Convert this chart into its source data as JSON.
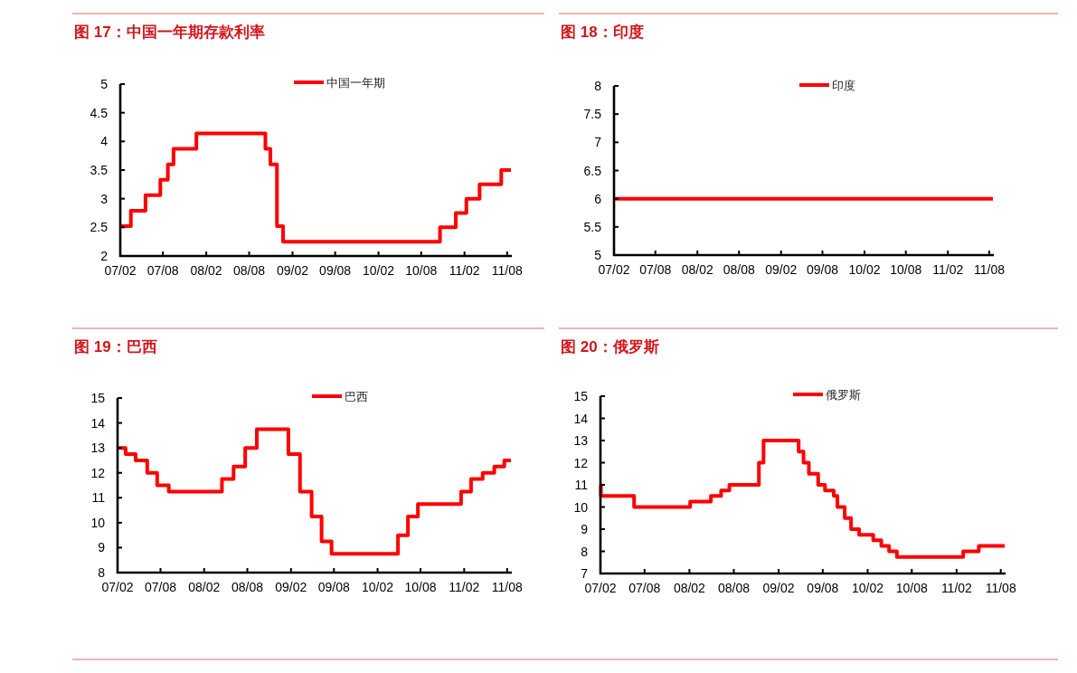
{
  "chart_data": [
    {
      "type": "step",
      "title": "图 17：中国一年期存款利率",
      "x": [
        "2007-02-01",
        "2007-03-18",
        "2007-05-19",
        "2007-07-21",
        "2007-08-22",
        "2007-09-15",
        "2007-12-21",
        "2008-10-09",
        "2008-10-30",
        "2008-11-27",
        "2008-12-23",
        "2010-10-20",
        "2010-12-26",
        "2011-02-09",
        "2011-04-06",
        "2011-07-07",
        "2011-08-17"
      ],
      "series": [
        {
          "name": "中国一年期",
          "color": "#ff0000",
          "values": [
            2.52,
            2.79,
            3.06,
            3.33,
            3.6,
            3.87,
            4.14,
            3.87,
            3.6,
            2.52,
            2.25,
            2.5,
            2.75,
            3,
            3.25,
            3.5,
            3.5
          ]
        }
      ],
      "xlim": [
        "2007-02-01",
        "2011-08-17"
      ],
      "xticks": [
        {
          "value": "2007-02",
          "label": "07/02"
        },
        {
          "value": "2007-08",
          "label": "07/08"
        },
        {
          "value": "2008-02",
          "label": "08/02"
        },
        {
          "value": "2008-08",
          "label": "08/08"
        },
        {
          "value": "2009-02",
          "label": "09/02"
        },
        {
          "value": "2009-08",
          "label": "09/08"
        },
        {
          "value": "2010-02",
          "label": "10/02"
        },
        {
          "value": "2010-08",
          "label": "10/08"
        },
        {
          "value": "2011-02",
          "label": "11/02"
        },
        {
          "value": "2011-08",
          "label": "11/08"
        }
      ],
      "ylim": [
        2,
        5
      ],
      "yticks": [
        2,
        2.5,
        3,
        3.5,
        4,
        4.5,
        5
      ],
      "legend": "top"
    },
    {
      "type": "step",
      "title": "图 18：印度",
      "x": [
        "2007-02-01",
        "2011-08-17"
      ],
      "series": [
        {
          "name": "印度",
          "color": "#ff0000",
          "values": [
            6,
            6
          ]
        }
      ],
      "xlim": [
        "2007-02-01",
        "2011-08-17"
      ],
      "xticks": [
        {
          "value": "2007-02",
          "label": "07/02"
        },
        {
          "value": "2007-08",
          "label": "07/08"
        },
        {
          "value": "2008-02",
          "label": "08/02"
        },
        {
          "value": "2008-08",
          "label": "08/08"
        },
        {
          "value": "2009-02",
          "label": "09/02"
        },
        {
          "value": "2009-08",
          "label": "09/08"
        },
        {
          "value": "2010-02",
          "label": "10/02"
        },
        {
          "value": "2010-08",
          "label": "10/08"
        },
        {
          "value": "2011-02",
          "label": "11/02"
        },
        {
          "value": "2011-08",
          "label": "11/08"
        }
      ],
      "ylim": [
        5,
        8
      ],
      "yticks": [
        5,
        5.5,
        6,
        6.5,
        7,
        7.5,
        8
      ],
      "legend": "top"
    },
    {
      "type": "step",
      "title": "图 19：巴西",
      "x": [
        "2007-02-01",
        "2007-03-07",
        "2007-04-18",
        "2007-06-06",
        "2007-07-18",
        "2007-09-05",
        "2008-04-16",
        "2008-06-04",
        "2008-07-23",
        "2008-09-10",
        "2009-01-21",
        "2009-03-11",
        "2009-04-29",
        "2009-06-10",
        "2009-07-22",
        "2010-04-28",
        "2010-06-09",
        "2010-07-21",
        "2011-01-19",
        "2011-03-02",
        "2011-04-20",
        "2011-06-08",
        "2011-07-20",
        "2011-08-17"
      ],
      "series": [
        {
          "name": "巴西",
          "color": "#ff0000",
          "values": [
            13,
            12.75,
            12.5,
            12,
            11.5,
            11.25,
            11.75,
            12.25,
            13,
            13.75,
            12.75,
            11.25,
            10.25,
            9.25,
            8.75,
            9.5,
            10.25,
            10.75,
            11.25,
            11.75,
            12,
            12.25,
            12.5,
            12.5
          ]
        }
      ],
      "xlim": [
        "2007-02-01",
        "2011-08-17"
      ],
      "xticks": [
        {
          "value": "2007-02",
          "label": "07/02"
        },
        {
          "value": "2007-08",
          "label": "07/08"
        },
        {
          "value": "2008-02",
          "label": "08/02"
        },
        {
          "value": "2008-08",
          "label": "08/08"
        },
        {
          "value": "2009-02",
          "label": "09/02"
        },
        {
          "value": "2009-08",
          "label": "09/08"
        },
        {
          "value": "2010-02",
          "label": "10/02"
        },
        {
          "value": "2010-08",
          "label": "10/08"
        },
        {
          "value": "2011-02",
          "label": "11/02"
        },
        {
          "value": "2011-08",
          "label": "11/08"
        }
      ],
      "ylim": [
        8,
        15
      ],
      "yticks": [
        8,
        9,
        10,
        11,
        12,
        13,
        14,
        15
      ],
      "legend": "top"
    },
    {
      "type": "step",
      "title": "图 20：俄罗斯",
      "x": [
        "2007-02-01",
        "2007-02-03",
        "2007-06-19",
        "2008-02-04",
        "2008-04-29",
        "2008-06-10",
        "2008-07-14",
        "2008-11-12",
        "2008-12-01",
        "2009-04-24",
        "2009-05-14",
        "2009-06-05",
        "2009-07-13",
        "2009-08-10",
        "2009-09-15",
        "2009-09-30",
        "2009-10-30",
        "2009-11-25",
        "2009-12-28",
        "2010-02-24",
        "2010-03-29",
        "2010-04-30",
        "2010-06-01",
        "2011-02-28",
        "2011-05-03",
        "2011-08-17"
      ],
      "series": [
        {
          "name": "俄罗斯",
          "color": "#ff0000",
          "values": [
            11,
            10.5,
            10,
            10.25,
            10.5,
            10.75,
            11,
            12,
            13,
            12.5,
            12,
            11.5,
            11,
            10.75,
            10.5,
            10,
            9.5,
            9,
            8.75,
            8.5,
            8.25,
            8,
            7.75,
            8,
            8.25,
            8.25
          ]
        }
      ],
      "xlim": [
        "2007-02-01",
        "2011-08-17"
      ],
      "xticks": [
        {
          "value": "2007-02",
          "label": "07/02"
        },
        {
          "value": "2007-08",
          "label": "07/08"
        },
        {
          "value": "2008-02",
          "label": "08/02"
        },
        {
          "value": "2008-08",
          "label": "08/08"
        },
        {
          "value": "2009-02",
          "label": "09/02"
        },
        {
          "value": "2009-08",
          "label": "09/08"
        },
        {
          "value": "2010-02",
          "label": "10/02"
        },
        {
          "value": "2010-08",
          "label": "10/08"
        },
        {
          "value": "2011-02",
          "label": "11/02"
        },
        {
          "value": "2011-08",
          "label": "11/08"
        }
      ],
      "ylim": [
        7,
        15
      ],
      "yticks": [
        7,
        8,
        9,
        10,
        11,
        12,
        13,
        14,
        15
      ],
      "legend": "top"
    }
  ]
}
